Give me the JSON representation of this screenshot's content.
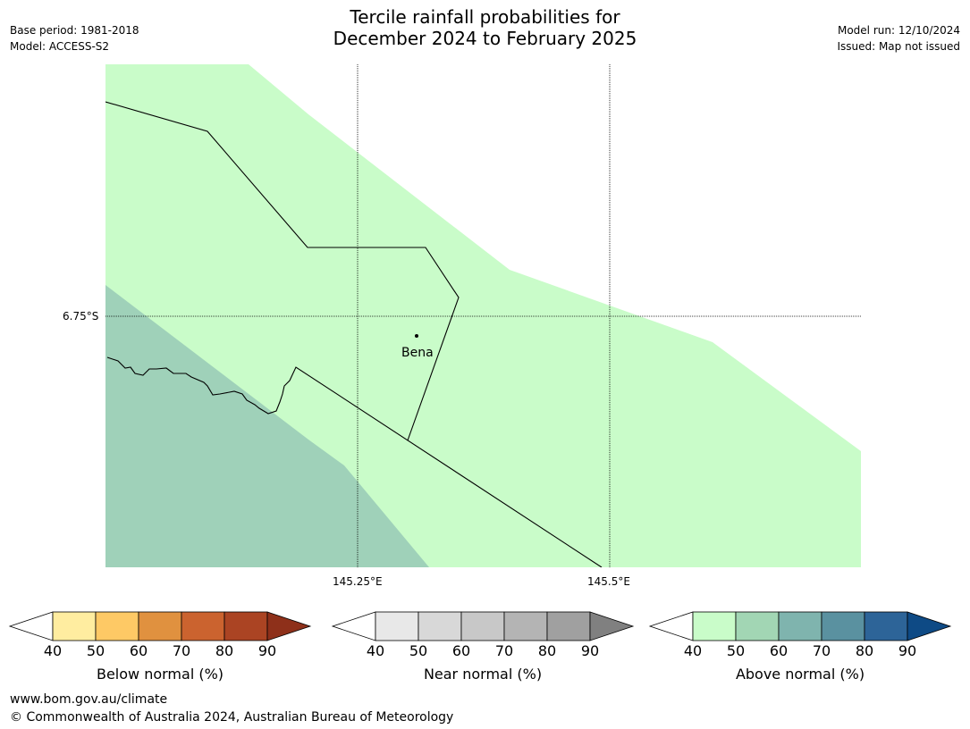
{
  "title": {
    "line1": "Tercile rainfall probabilities for",
    "line2": "December 2024 to February 2025"
  },
  "meta_left": {
    "base_period": "Base period: 1981-2018",
    "model": "Model: ACCESS-S2"
  },
  "meta_right": {
    "model_run": "Model run: 12/10/2024",
    "issued": "Issued: Map not issued"
  },
  "map": {
    "lon_labels": [
      "145.25°E",
      "145.5°E"
    ],
    "lat_labels": [
      "6.75°S"
    ],
    "place": "Bena"
  },
  "colorbars": [
    {
      "label": "Below normal (%)",
      "ticks": [
        "40",
        "50",
        "60",
        "70",
        "80",
        "90"
      ],
      "colors": [
        "#ffeda0",
        "#fec965",
        "#e0913f",
        "#cb632f",
        "#ab4423",
        "#8e301a"
      ]
    },
    {
      "label": "Near normal (%)",
      "ticks": [
        "40",
        "50",
        "60",
        "70",
        "80",
        "90"
      ],
      "colors": [
        "#e8e8e8",
        "#d8d8d8",
        "#c8c8c8",
        "#b4b4b4",
        "#a0a0a0",
        "#808080"
      ]
    },
    {
      "label": "Above normal (%)",
      "ticks": [
        "40",
        "50",
        "60",
        "70",
        "80",
        "90"
      ],
      "colors": [
        "#c9fcc9",
        "#a2d6b4",
        "#7fb4ae",
        "#5a91a0",
        "#2d6498",
        "#0e4a85"
      ]
    }
  ],
  "footer": {
    "website": "www.bom.gov.au/climate",
    "copyright": "© Commonwealth of Australia 2024, Australian Bureau of Meteorology"
  }
}
